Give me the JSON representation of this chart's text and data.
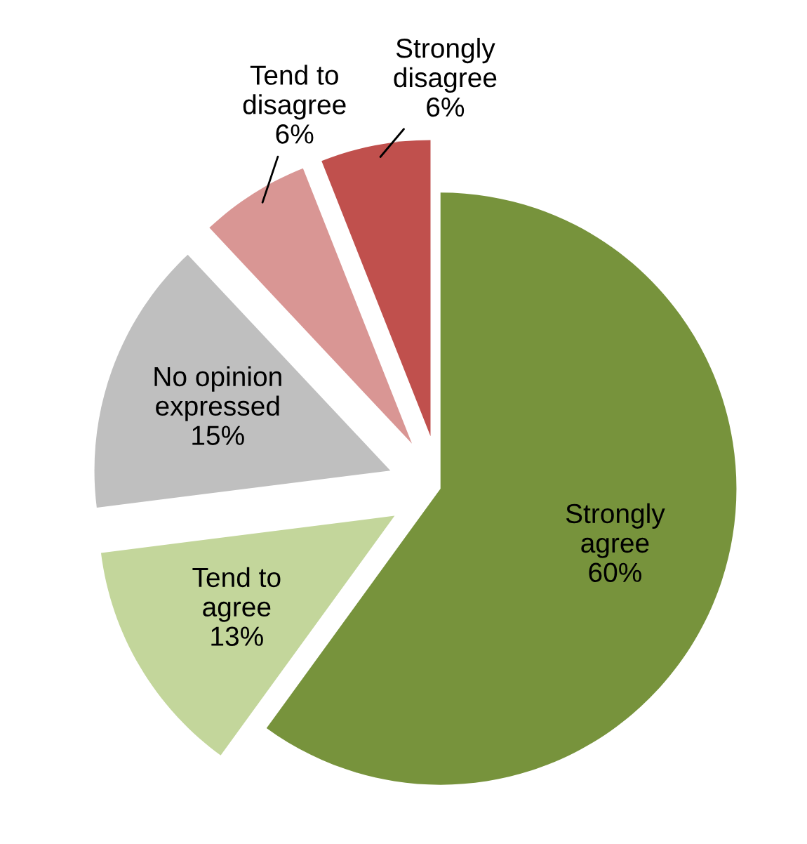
{
  "chart_data": {
    "type": "pie",
    "categories": [
      "Strongly\nagree",
      "Tend to\nagree",
      "No opinion\nexpressed",
      "Tend to\ndisagree",
      "Strongly\ndisagree"
    ],
    "values": [
      60,
      13,
      15,
      6,
      6
    ],
    "colors": [
      "#77933c",
      "#c3d69b",
      "#bfbfbf",
      "#d99694",
      "#c0504d"
    ],
    "value_labels": [
      "60%",
      "13%",
      "15%",
      "6%",
      "6%"
    ],
    "legend": false
  }
}
